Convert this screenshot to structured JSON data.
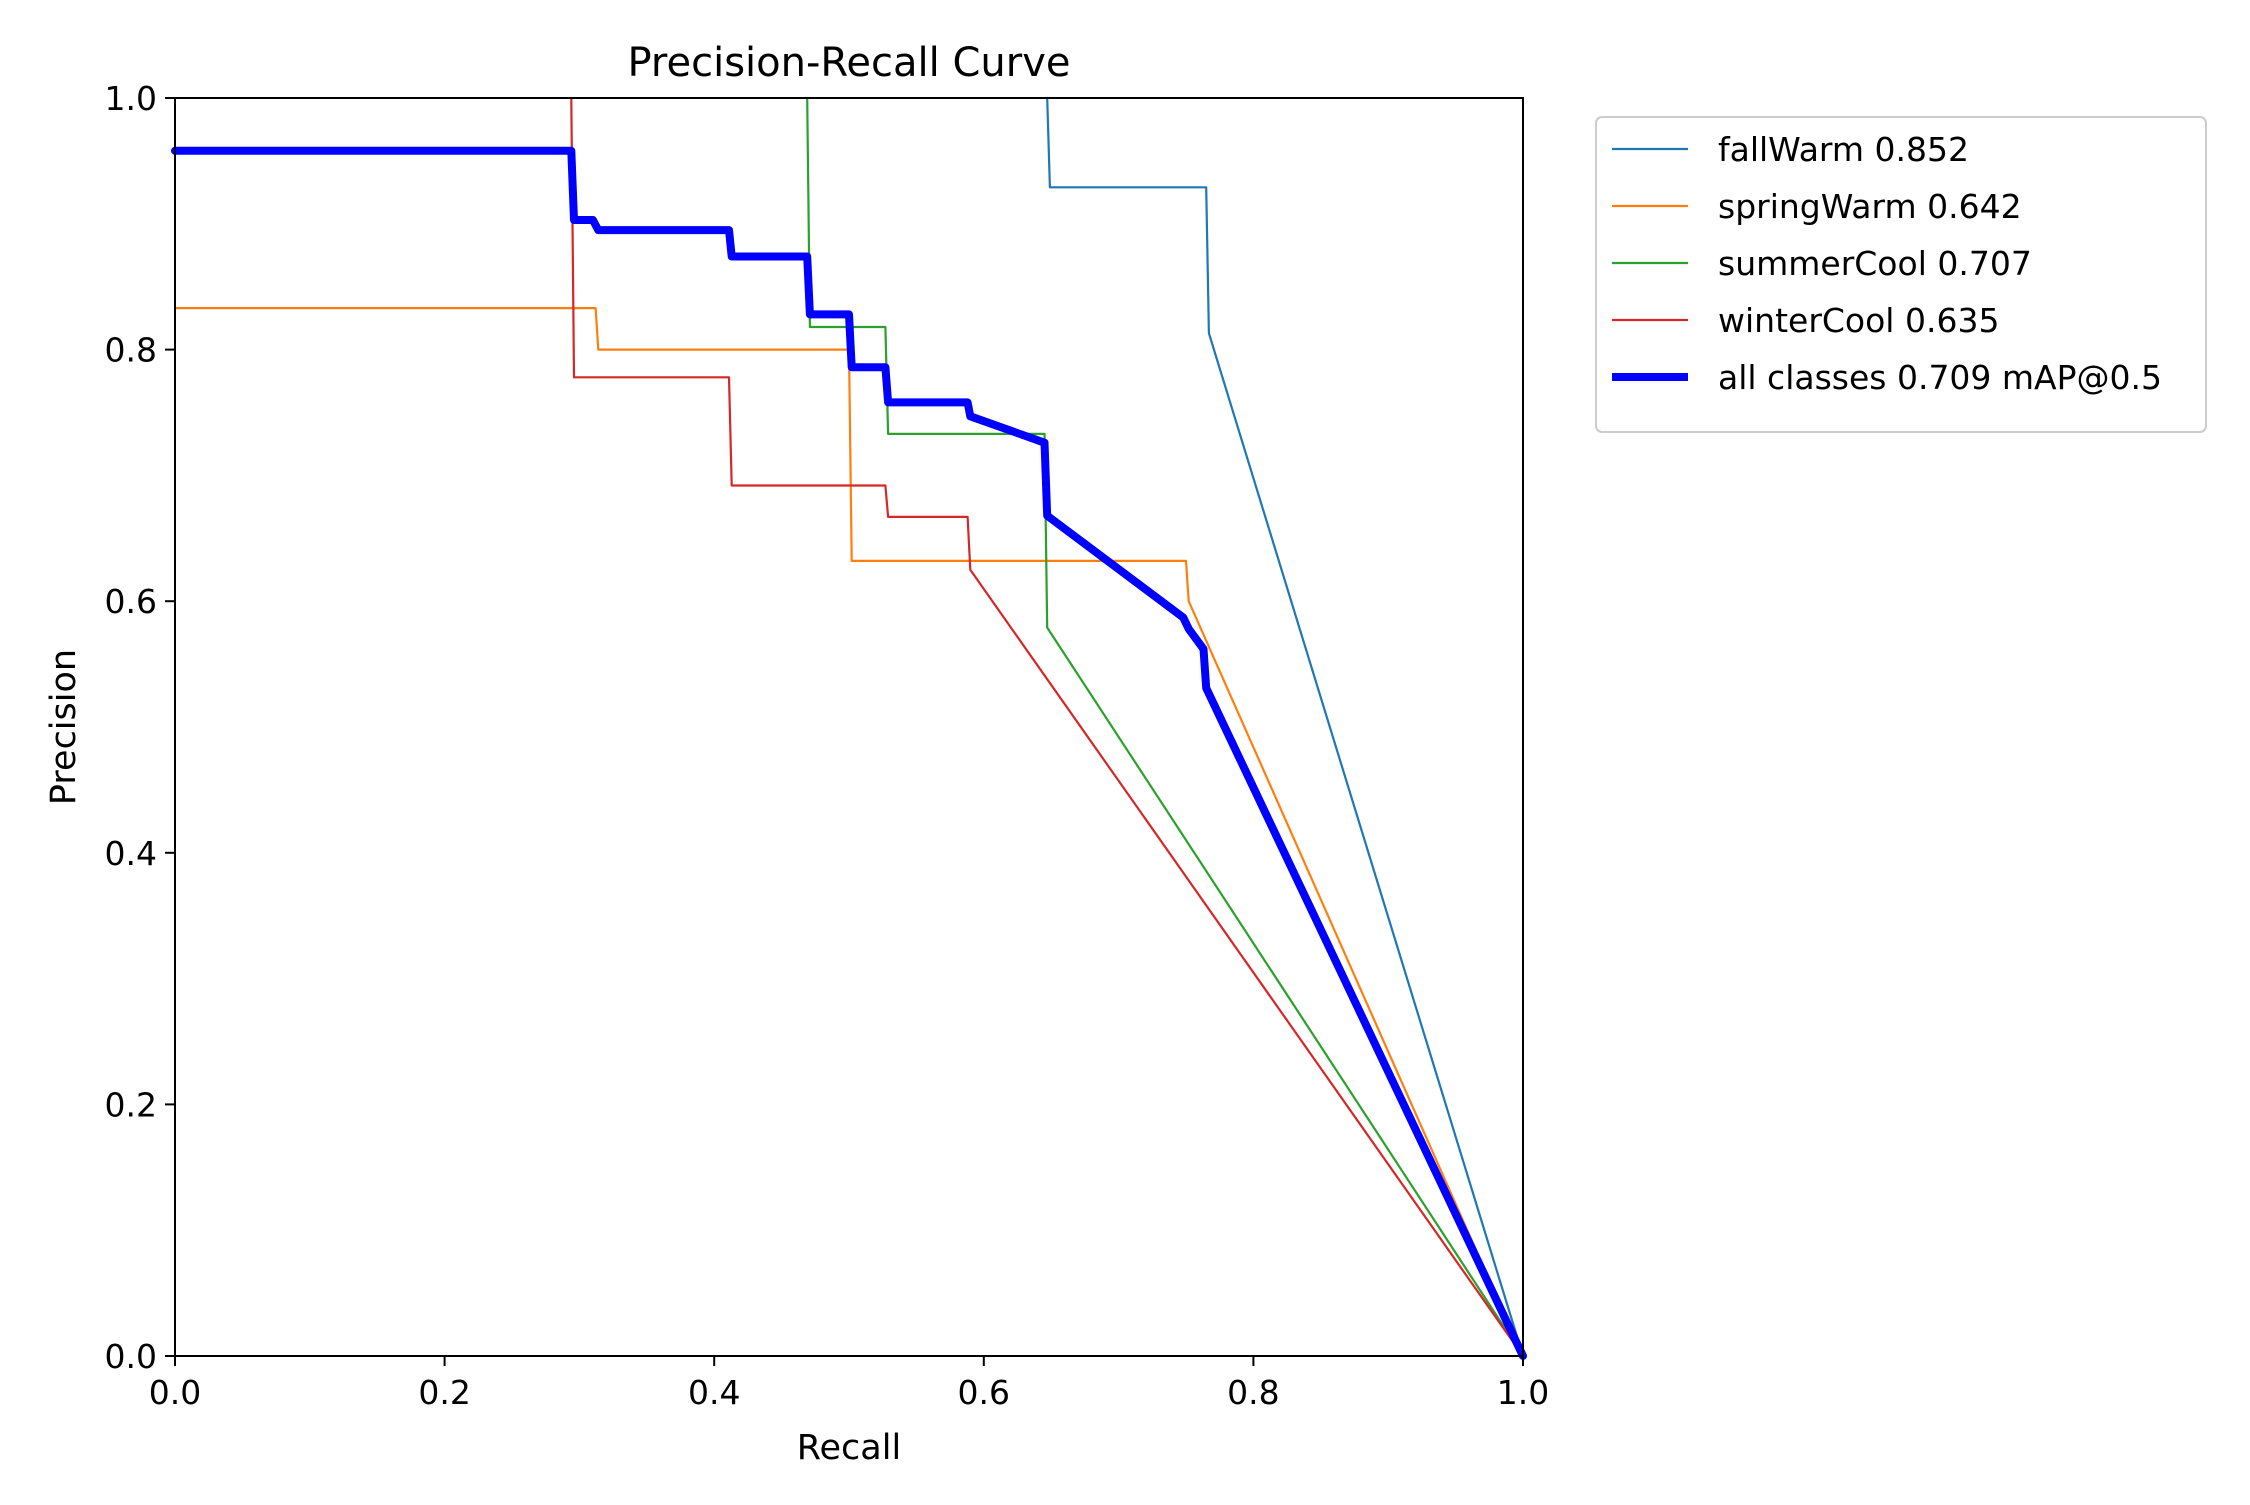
{
  "chart_data": {
    "type": "line",
    "title": "Precision-Recall Curve",
    "xlabel": "Recall",
    "ylabel": "Precision",
    "xlim": [
      0,
      1
    ],
    "ylim": [
      0,
      1
    ],
    "xticks": [
      "0.0",
      "0.2",
      "0.4",
      "0.6",
      "0.8",
      "1.0"
    ],
    "yticks": [
      "0.0",
      "0.2",
      "0.4",
      "0.6",
      "0.8",
      "1.0"
    ],
    "xtick_values": [
      0,
      0.2,
      0.4,
      0.6,
      0.8,
      1.0
    ],
    "ytick_values": [
      0,
      0.2,
      0.4,
      0.6,
      0.8,
      1.0
    ],
    "grid": false,
    "legend_position": "outside-top-right",
    "series": [
      {
        "name": "fallWarm 0.852",
        "color": "#1f77b4",
        "points": [
          [
            0.647,
            1.0
          ],
          [
            0.649,
            0.929
          ],
          [
            0.765,
            0.929
          ],
          [
            0.767,
            0.813
          ],
          [
            1.0,
            0.0
          ]
        ]
      },
      {
        "name": "springWarm 0.642",
        "color": "#ff7f0e",
        "points": [
          [
            0.0,
            0.833
          ],
          [
            0.312,
            0.833
          ],
          [
            0.314,
            0.8
          ],
          [
            0.5,
            0.8
          ],
          [
            0.502,
            0.632
          ],
          [
            0.75,
            0.632
          ],
          [
            0.752,
            0.6
          ],
          [
            1.0,
            0.0
          ]
        ]
      },
      {
        "name": "summerCool 0.707",
        "color": "#2ca02c",
        "points": [
          [
            0.469,
            1.0
          ],
          [
            0.471,
            0.818
          ],
          [
            0.527,
            0.818
          ],
          [
            0.529,
            0.733
          ],
          [
            0.645,
            0.733
          ],
          [
            0.647,
            0.579
          ],
          [
            1.0,
            0.0
          ]
        ]
      },
      {
        "name": "winterCool 0.635",
        "color": "#d62728",
        "points": [
          [
            0.294,
            1.0
          ],
          [
            0.296,
            0.778
          ],
          [
            0.411,
            0.778
          ],
          [
            0.413,
            0.692
          ],
          [
            0.527,
            0.692
          ],
          [
            0.529,
            0.667
          ],
          [
            0.588,
            0.667
          ],
          [
            0.59,
            0.625
          ],
          [
            1.0,
            0.0
          ]
        ]
      },
      {
        "name": "all classes 0.709 mAP@0.5",
        "color": "#0000ff",
        "bold": true,
        "points": [
          [
            0.0,
            0.958
          ],
          [
            0.294,
            0.958
          ],
          [
            0.296,
            0.903
          ],
          [
            0.31,
            0.903
          ],
          [
            0.314,
            0.895
          ],
          [
            0.411,
            0.895
          ],
          [
            0.413,
            0.874
          ],
          [
            0.469,
            0.874
          ],
          [
            0.471,
            0.828
          ],
          [
            0.5,
            0.828
          ],
          [
            0.502,
            0.786
          ],
          [
            0.527,
            0.786
          ],
          [
            0.529,
            0.758
          ],
          [
            0.588,
            0.758
          ],
          [
            0.59,
            0.747
          ],
          [
            0.645,
            0.726
          ],
          [
            0.647,
            0.668
          ],
          [
            0.748,
            0.587
          ],
          [
            0.752,
            0.578
          ],
          [
            0.763,
            0.562
          ],
          [
            0.765,
            0.531
          ],
          [
            1.0,
            0.0
          ]
        ]
      }
    ]
  }
}
